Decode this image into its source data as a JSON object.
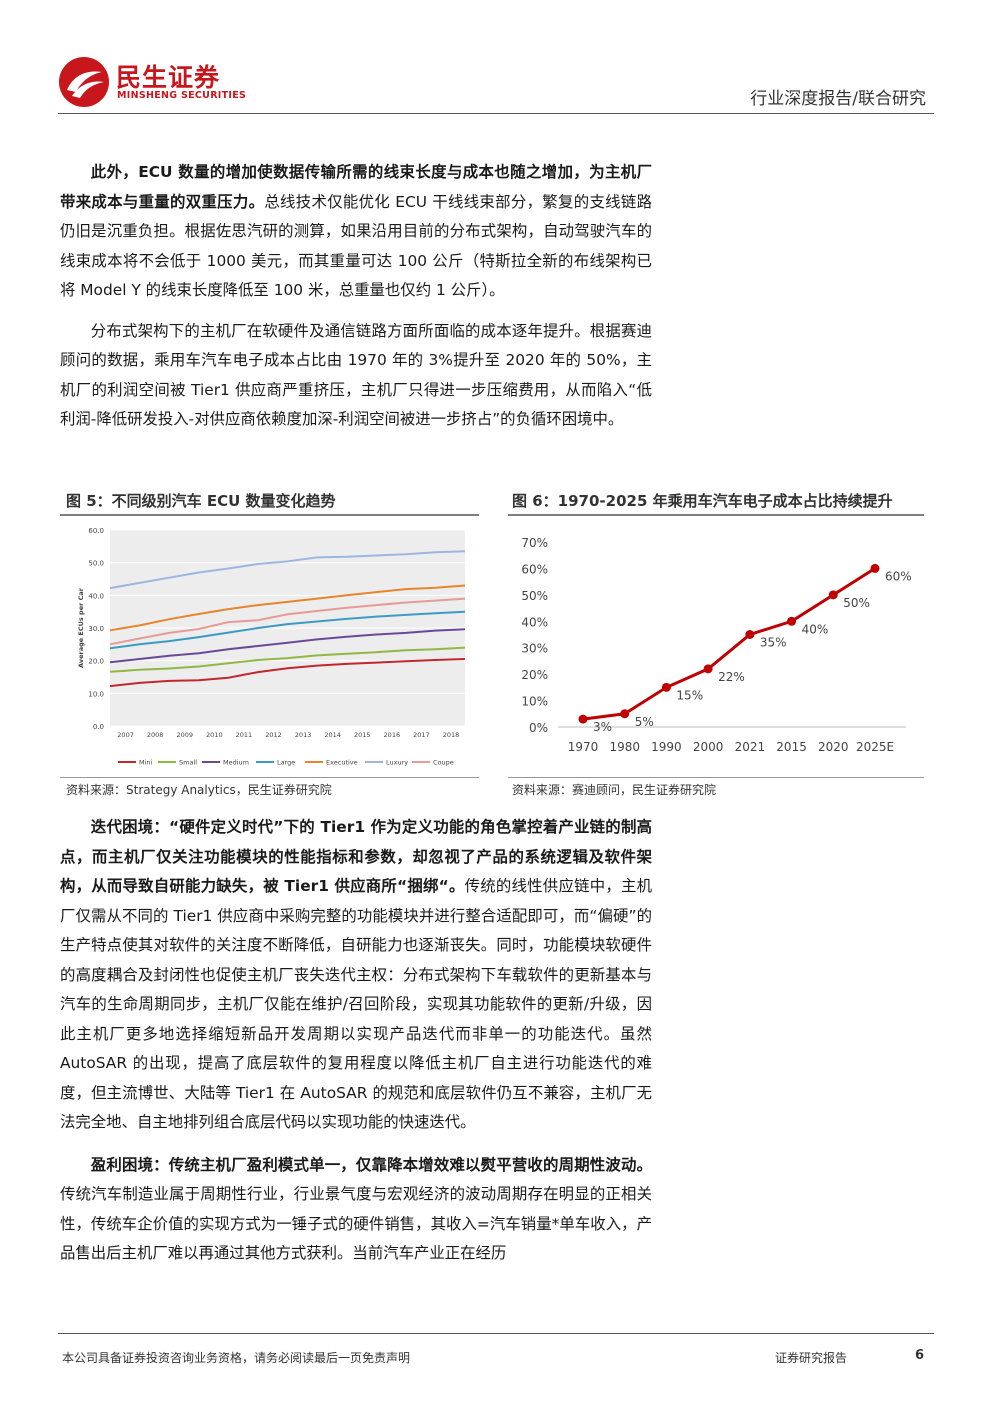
{
  "header": {
    "brand_cn": "民生证券",
    "brand_en": "MINSHENG SECURITIES",
    "report_type": "行业深度报告/联合研究"
  },
  "paragraphs": {
    "p1": {
      "bold": "此外，ECU 数量的增加使数据传输所需的线束长度与成本也随之增加，为主机厂带来成本与重量的双重压力。",
      "text": "总线技术仅能优化 ECU 干线线束部分，繁复的支线链路仍旧是沉重负担。根据佐思汽研的测算，如果沿用目前的分布式架构，自动驾驶汽车的线束成本将不会低于 1000 美元，而其重量可达 100 公斤（特斯拉全新的布线架构已将 Model Y 的线束长度降低至 100 米，总重量也仅约 1 公斤）。"
    },
    "p2": {
      "text": "分布式架构下的主机厂在软硬件及通信链路方面所面临的成本逐年提升。根据赛迪顾问的数据，乘用车汽车电子成本占比由 1970 年的 3%提升至 2020 年的 50%，主机厂的利润空间被 Tier1 供应商严重挤压，主机厂只得进一步压缩费用，从而陷入“低利润-降低研发投入-对供应商依赖度加深-利润空间被进一步挤占”的负循环困境中。"
    },
    "p3": {
      "bold": "迭代困境：“硬件定义时代”下的 Tier1 作为定义功能的角色掌控着产业链的制高点，而主机厂仅关注功能模块的性能指标和参数，却忽视了产品的系统逻辑及软件架构，从而导致自研能力缺失，被 Tier1 供应商所“捆绑“。",
      "text": "传统的线性供应链中，主机厂仅需从不同的 Tier1 供应商中采购完整的功能模块并进行整合适配即可，而“偏硬”的生产特点使其对软件的关注度不断降低，自研能力也逐渐丧失。同时，功能模块软硬件的高度耦合及封闭性也促使主机厂丧失迭代主权：分布式架构下车载软件的更新基本与汽车的生命周期同步，主机厂仅能在维护/召回阶段，实现其功能软件的更新/升级，因此主机厂更多地选择缩短新品开发周期以实现产品迭代而非单一的功能迭代。虽然 AutoSAR 的出现，提高了底层软件的复用程度以降低主机厂自主进行功能迭代的难度，但主流博世、大陆等 Tier1 在 AutoSAR 的规范和底层软件仍互不兼容，主机厂无法完全地、自主地排列组合底层代码以实现功能的快速迭代。"
    },
    "p4": {
      "bold": "盈利困境：传统主机厂盈利模式单一，仅靠降本增效难以熨平营收的周期性波动。",
      "text": "传统汽车制造业属于周期性行业，行业景气度与宏观经济的波动周期存在明显的正相关性，传统车企价值的实现方式为一锤子式的硬件销售，其收入=汽车销量*单车收入，产品售出后主机厂难以再通过其他方式获利。当前汽车产业正在经历"
    }
  },
  "figures": {
    "fig5": {
      "title": "图 5：不同级别汽车 ECU 数量变化趋势",
      "source": "资料来源：Strategy Analytics，民生证券研究院"
    },
    "fig6": {
      "title": "图 6：1970-2025 年乘用车汽车电子成本占比持续提升",
      "source": "资料来源：赛迪顾问，民生证券研究院"
    }
  },
  "chart_data": [
    {
      "type": "line",
      "ylabel": "Average ECUs per Car",
      "ylim": [
        0,
        60
      ],
      "yticks": [
        "0.0",
        "10.0",
        "20.0",
        "30.0",
        "40.0",
        "50.0",
        "60.0"
      ],
      "categories": [
        "2007",
        "2008",
        "2009",
        "2010",
        "2011",
        "2012",
        "2013",
        "2014",
        "2015",
        "2016",
        "2017",
        "2018"
      ],
      "x_start": 2006.0,
      "x_end": 2018.0,
      "grid": true,
      "legend_position": "bottom",
      "series": [
        {
          "name": "Mini",
          "color": "#c0282e",
          "x": [
            2006,
            2007,
            2008,
            2009,
            2010,
            2011,
            2012,
            2013,
            2014,
            2015,
            2016,
            2017,
            2018
          ],
          "values": [
            12.2,
            13.2,
            13.8,
            14.0,
            14.8,
            16.5,
            17.7,
            18.5,
            19.0,
            19.4,
            19.8,
            20.2,
            20.5
          ]
        },
        {
          "name": "Small",
          "color": "#92b744",
          "x": [
            2006,
            2007,
            2008,
            2009,
            2010,
            2011,
            2012,
            2013,
            2014,
            2015,
            2016,
            2017,
            2018
          ],
          "values": [
            16.6,
            17.2,
            17.6,
            18.2,
            19.2,
            20.2,
            20.8,
            21.6,
            22.1,
            22.6,
            23.2,
            23.5,
            24.0
          ]
        },
        {
          "name": "Medium",
          "color": "#6a4a98",
          "x": [
            2006,
            2007,
            2008,
            2009,
            2010,
            2011,
            2012,
            2013,
            2014,
            2015,
            2016,
            2017,
            2018
          ],
          "values": [
            19.5,
            20.5,
            21.5,
            22.3,
            23.5,
            24.5,
            25.5,
            26.5,
            27.3,
            28.0,
            28.5,
            29.2,
            29.6
          ]
        },
        {
          "name": "Large",
          "color": "#3c9bc4",
          "x": [
            2006,
            2007,
            2008,
            2009,
            2010,
            2011,
            2012,
            2013,
            2014,
            2015,
            2016,
            2017,
            2018
          ],
          "values": [
            23.8,
            25.0,
            26.0,
            27.2,
            28.6,
            30.0,
            31.2,
            32.0,
            32.8,
            33.5,
            34.0,
            34.5,
            35.0
          ]
        },
        {
          "name": "Executive",
          "color": "#e7852c",
          "x": [
            2006,
            2007,
            2008,
            2009,
            2010,
            2011,
            2012,
            2013,
            2014,
            2015,
            2016,
            2017,
            2018
          ],
          "values": [
            29.3,
            30.8,
            32.7,
            34.3,
            35.8,
            37.0,
            38.0,
            39.0,
            40.0,
            41.0,
            41.9,
            42.3,
            43.0
          ]
        },
        {
          "name": "Luxury",
          "color": "#9bb7e0",
          "x": [
            2006,
            2007,
            2008,
            2009,
            2010,
            2011,
            2012,
            2013,
            2014,
            2015,
            2016,
            2017,
            2018
          ],
          "values": [
            42.2,
            43.8,
            45.4,
            47.0,
            48.2,
            49.6,
            50.4,
            51.6,
            51.8,
            52.2,
            52.6,
            53.2,
            53.5
          ]
        },
        {
          "name": "Coupe",
          "color": "#e59b96",
          "x": [
            2006,
            2007,
            2008,
            2009,
            2010,
            2011,
            2012,
            2013,
            2014,
            2015,
            2016,
            2017,
            2018
          ],
          "values": [
            25.0,
            26.8,
            28.5,
            29.7,
            31.8,
            32.4,
            34.2,
            35.2,
            36.2,
            37.0,
            37.8,
            38.4,
            39.0
          ]
        }
      ]
    },
    {
      "type": "line",
      "ylim": [
        0,
        70
      ],
      "yticks": [
        "0%",
        "10%",
        "20%",
        "30%",
        "40%",
        "50%",
        "60%",
        "70%"
      ],
      "categories": [
        "1970",
        "1980",
        "1990",
        "2000",
        "2021",
        "2015",
        "2020",
        "2025E"
      ],
      "series": [
        {
          "name": "",
          "color": "#c00000",
          "values": [
            3,
            5,
            15,
            22,
            35,
            40,
            50,
            60
          ],
          "labels": [
            "3%",
            "5%",
            "15%",
            "22%",
            "35%",
            "40%",
            "50%",
            "60%"
          ]
        }
      ],
      "grid": false
    }
  ],
  "footer": {
    "disclaimer": "本公司具备证券投资咨询业务资格，请务必阅读最后一页免责声明",
    "doc_type": "证券研究报告",
    "page": "6"
  }
}
